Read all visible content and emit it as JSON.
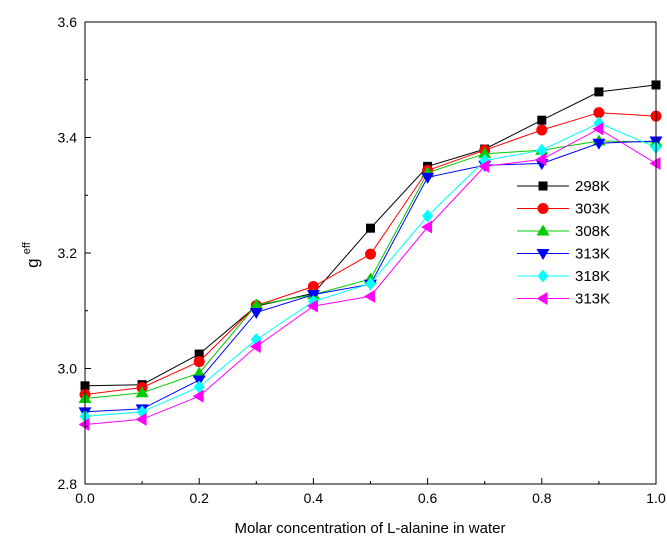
{
  "chart_data": {
    "type": "line",
    "xlabel": "Molar concentration of L-alanine in water",
    "ylabel_main": "g",
    "ylabel_sup": "eff",
    "xlim": [
      0.0,
      1.0
    ],
    "ylim": [
      2.8,
      3.6
    ],
    "x_ticks": [
      "0.0",
      "0.2",
      "0.4",
      "0.6",
      "0.8",
      "1.0"
    ],
    "x_tick_values": [
      0.0,
      0.2,
      0.4,
      0.6,
      0.8,
      1.0
    ],
    "y_ticks": [
      "2.8",
      "3.0",
      "3.2",
      "3.4",
      "3.6"
    ],
    "y_tick_values": [
      2.8,
      3.0,
      3.2,
      3.4,
      3.6
    ],
    "grid": false,
    "legend_position": "right",
    "x": [
      0.0,
      0.1,
      0.2,
      0.3,
      0.4,
      0.5,
      0.6,
      0.7,
      0.8,
      0.9,
      1.0
    ],
    "series": [
      {
        "name": "298K",
        "marker": "square",
        "color": "#000000",
        "values": [
          2.97,
          2.972,
          3.025,
          3.108,
          3.13,
          3.243,
          3.35,
          3.38,
          3.43,
          3.479,
          3.491
        ]
      },
      {
        "name": "303K",
        "marker": "circle",
        "color": "#ff0000",
        "values": [
          2.955,
          2.967,
          3.012,
          3.109,
          3.142,
          3.198,
          3.343,
          3.378,
          3.413,
          3.443,
          3.437
        ]
      },
      {
        "name": "308K",
        "marker": "triangle-up",
        "color": "#00cc00",
        "values": [
          2.948,
          2.958,
          2.992,
          3.11,
          3.128,
          3.155,
          3.339,
          3.372,
          3.378,
          3.394,
          3.392
        ]
      },
      {
        "name": "313K",
        "marker": "triangle-down",
        "color": "#0000ff",
        "values": [
          2.925,
          2.93,
          2.98,
          3.097,
          3.128,
          3.146,
          3.331,
          3.352,
          3.355,
          3.39,
          3.394
        ]
      },
      {
        "name": "318K",
        "marker": "diamond",
        "color": "#00ffff",
        "values": [
          2.917,
          2.925,
          2.968,
          3.05,
          3.116,
          3.147,
          3.264,
          3.36,
          3.378,
          3.425,
          3.383
        ]
      },
      {
        "name": "313K",
        "marker": "triangle-left",
        "color": "#ff00ff",
        "values": [
          2.903,
          2.912,
          2.952,
          3.038,
          3.108,
          3.125,
          3.245,
          3.35,
          3.362,
          3.415,
          3.355
        ]
      }
    ]
  }
}
